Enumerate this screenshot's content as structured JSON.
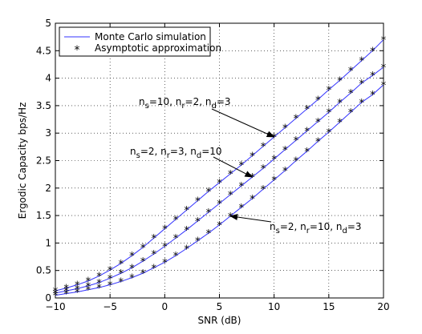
{
  "chart_data": {
    "type": "line",
    "title": "",
    "xlabel": "SNR (dB)",
    "ylabel": "Ergodic Capacity bps/Hz",
    "xlim": [
      -10,
      20
    ],
    "ylim": [
      0,
      5
    ],
    "xticks": [
      -10,
      -5,
      0,
      5,
      10,
      15,
      20
    ],
    "yticks": [
      0,
      0.5,
      1,
      1.5,
      2,
      2.5,
      3,
      3.5,
      4,
      4.5,
      5
    ],
    "grid": true,
    "legend_position": "top-left",
    "legend": [
      {
        "label": "Monte Carlo simulation",
        "style": "line"
      },
      {
        "label": "Asymptotic approximation",
        "style": "star-marker"
      }
    ],
    "x": [
      -10,
      -9,
      -8,
      -7,
      -6,
      -5,
      -4,
      -3,
      -2,
      -1,
      0,
      1,
      2,
      3,
      4,
      5,
      6,
      7,
      8,
      9,
      10,
      11,
      12,
      13,
      14,
      15,
      16,
      17,
      18,
      19,
      20
    ],
    "series": [
      {
        "values": [
          0.13,
          0.18,
          0.24,
          0.31,
          0.4,
          0.51,
          0.63,
          0.77,
          0.92,
          1.09,
          1.26,
          1.43,
          1.6,
          1.77,
          1.94,
          2.1,
          2.26,
          2.42,
          2.59,
          2.76,
          2.93,
          3.1,
          3.27,
          3.44,
          3.61,
          3.79,
          3.96,
          4.14,
          4.32,
          4.5,
          4.7
        ],
        "color": "#3333ff"
      },
      {
        "values": [
          0.09,
          0.13,
          0.17,
          0.22,
          0.28,
          0.36,
          0.45,
          0.55,
          0.67,
          0.8,
          0.94,
          1.09,
          1.24,
          1.4,
          1.56,
          1.72,
          1.88,
          2.04,
          2.2,
          2.36,
          2.53,
          2.7,
          2.87,
          3.04,
          3.21,
          3.38,
          3.56,
          3.73,
          3.91,
          4.05,
          4.2
        ],
        "color": "#3333ff"
      },
      {
        "values": [
          0.05,
          0.08,
          0.11,
          0.15,
          0.19,
          0.24,
          0.3,
          0.37,
          0.45,
          0.55,
          0.65,
          0.77,
          0.9,
          1.04,
          1.18,
          1.33,
          1.49,
          1.65,
          1.81,
          1.98,
          2.15,
          2.32,
          2.5,
          2.67,
          2.85,
          3.02,
          3.2,
          3.38,
          3.56,
          3.7,
          3.88
        ]
      }
    ],
    "annotations": [
      {
        "n": "n",
        "s_sub": "s",
        "s_val": "=10, n",
        "r_sub": "r",
        "r_val": "=2, n",
        "d_sub": "d",
        "d_val": "=3",
        "arrow_to": {
          "x": 10,
          "y": 2.93
        }
      },
      {
        "n": "n",
        "s_sub": "s",
        "s_val": "=2, n",
        "r_sub": "r",
        "r_val": "=3, n",
        "d_sub": "d",
        "d_val": "=10",
        "arrow_to": {
          "x": 8,
          "y": 2.2
        }
      },
      {
        "n": "n",
        "s_sub": "s",
        "s_val": "=2, n",
        "r_sub": "r",
        "r_val": "=10, n",
        "d_sub": "d",
        "d_val": "=3",
        "arrow_to": {
          "x": 6,
          "y": 1.49
        }
      }
    ],
    "line_color": "#3333ff",
    "marker_color": "#3333ff"
  }
}
